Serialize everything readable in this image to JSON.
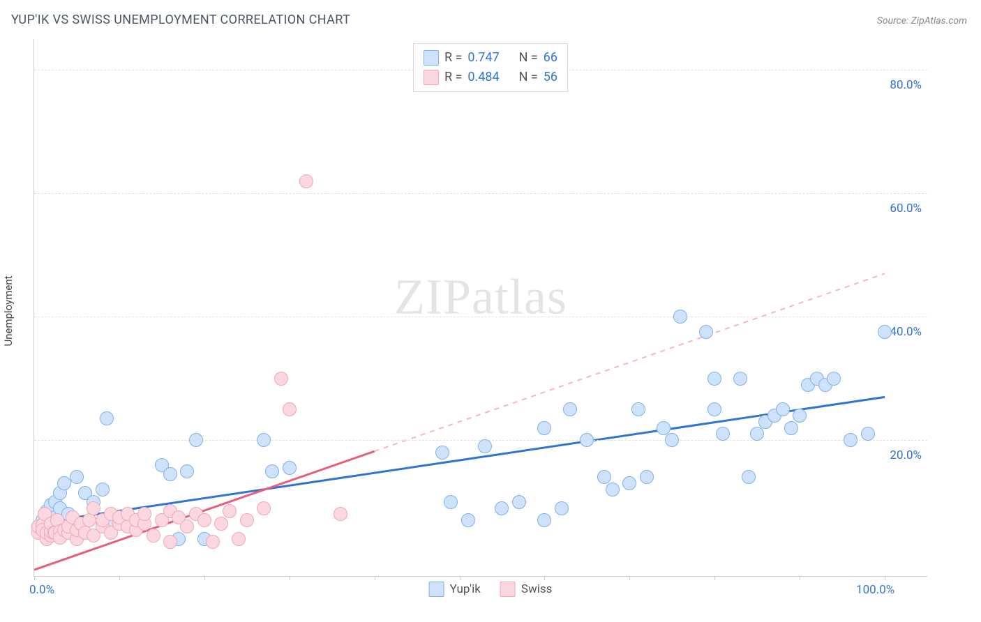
{
  "title": "YUP'IK VS SWISS UNEMPLOYMENT CORRELATION CHART",
  "source_label": "Source: ZipAtlas.com",
  "y_axis_label": "Unemployment",
  "watermark_zip": "ZIP",
  "watermark_rest": "atlas",
  "chart": {
    "type": "scatter",
    "xlim": [
      0,
      105
    ],
    "ylim": [
      -2,
      85
    ],
    "x_ticks": [
      0,
      10,
      20,
      30,
      40,
      50,
      60,
      70,
      80,
      90,
      100
    ],
    "x_tick_labels": {
      "0": "0.0%",
      "100": "100.0%"
    },
    "y_ticks": [
      20,
      40,
      60,
      80
    ],
    "y_tick_labels": {
      "20": "20.0%",
      "40": "40.0%",
      "60": "60.0%",
      "80": "80.0%"
    },
    "grid_color": "#e2e2e2",
    "background_color": "#ffffff",
    "marker_radius": 9,
    "marker_border_width": 1.5,
    "series": [
      {
        "key": "yupik",
        "label": "Yup'ik",
        "fill": "#cfe2fb",
        "stroke": "#7fb1ea",
        "trend_color": "#2f74d0",
        "trend_width": 3,
        "trend_dash_color": "#2f74d0",
        "stats": {
          "R_label": "R =",
          "R": "0.747",
          "N_label": "N =",
          "N": "66"
        },
        "trend": {
          "x1": 0,
          "y1": 6.5,
          "x2": 100,
          "y2": 27
        },
        "points": [
          [
            0.5,
            6
          ],
          [
            1,
            5
          ],
          [
            1,
            7
          ],
          [
            1.5,
            8.5
          ],
          [
            1.5,
            5.5
          ],
          [
            2,
            8
          ],
          [
            2,
            9.5
          ],
          [
            2.5,
            6.5
          ],
          [
            2.5,
            10
          ],
          [
            3,
            9
          ],
          [
            3,
            11.5
          ],
          [
            3.5,
            13
          ],
          [
            4,
            8
          ],
          [
            5,
            14
          ],
          [
            6,
            11.5
          ],
          [
            7,
            10
          ],
          [
            8,
            12
          ],
          [
            8.5,
            23.5
          ],
          [
            9,
            6
          ],
          [
            15,
            16
          ],
          [
            16,
            14.5
          ],
          [
            17,
            4
          ],
          [
            18,
            15
          ],
          [
            19,
            20
          ],
          [
            20,
            4
          ],
          [
            27,
            20
          ],
          [
            28,
            15
          ],
          [
            30,
            15.5
          ],
          [
            48,
            18
          ],
          [
            49,
            10
          ],
          [
            51,
            7
          ],
          [
            53,
            19
          ],
          [
            55,
            9
          ],
          [
            57,
            10
          ],
          [
            60,
            7
          ],
          [
            60,
            22
          ],
          [
            62,
            9
          ],
          [
            63,
            25
          ],
          [
            65,
            20
          ],
          [
            67,
            14
          ],
          [
            68,
            12
          ],
          [
            70,
            13
          ],
          [
            71,
            25
          ],
          [
            72,
            14
          ],
          [
            74,
            22
          ],
          [
            75,
            20
          ],
          [
            76,
            40
          ],
          [
            79,
            37.5
          ],
          [
            80,
            25
          ],
          [
            80,
            30
          ],
          [
            81,
            21
          ],
          [
            83,
            30
          ],
          [
            84,
            14
          ],
          [
            85,
            21
          ],
          [
            86,
            23
          ],
          [
            87,
            24
          ],
          [
            88,
            25
          ],
          [
            89,
            22
          ],
          [
            90,
            24
          ],
          [
            91,
            29
          ],
          [
            92,
            30
          ],
          [
            93,
            29
          ],
          [
            94,
            30
          ],
          [
            96,
            20
          ],
          [
            98,
            21
          ],
          [
            100,
            37.5
          ]
        ]
      },
      {
        "key": "swiss",
        "label": "Swiss",
        "fill": "#fbd7df",
        "stroke": "#f3a6b8",
        "trend_color": "#e85d7c",
        "trend_width": 3,
        "trend_dash_color": "#f6b5c3",
        "stats": {
          "R_label": "R =",
          "R": "0.484",
          "N_label": "N =",
          "N": "56"
        },
        "trend": {
          "x1": 0,
          "y1": -1,
          "x2": 100,
          "y2": 47
        },
        "trend_solid_xmax": 40,
        "points": [
          [
            0.5,
            5
          ],
          [
            0.5,
            6
          ],
          [
            1,
            6.2
          ],
          [
            1,
            5.5
          ],
          [
            1.2,
            8
          ],
          [
            1.5,
            4
          ],
          [
            1.5,
            5
          ],
          [
            2,
            4.5
          ],
          [
            2,
            5.2
          ],
          [
            2,
            6.5
          ],
          [
            2.3,
            5
          ],
          [
            2.5,
            5
          ],
          [
            2.7,
            7
          ],
          [
            3,
            5.2
          ],
          [
            3,
            4.2
          ],
          [
            3.5,
            5.5
          ],
          [
            4,
            5
          ],
          [
            4,
            6
          ],
          [
            4.5,
            7.5
          ],
          [
            5,
            4
          ],
          [
            5,
            5.5
          ],
          [
            5.5,
            6.5
          ],
          [
            6,
            5
          ],
          [
            6.5,
            7
          ],
          [
            7,
            4.5
          ],
          [
            7,
            9
          ],
          [
            8,
            6
          ],
          [
            8,
            7
          ],
          [
            9,
            5
          ],
          [
            9,
            8
          ],
          [
            10,
            6.5
          ],
          [
            10,
            7.5
          ],
          [
            11,
            6
          ],
          [
            11,
            8
          ],
          [
            12,
            5.5
          ],
          [
            12,
            7
          ],
          [
            13,
            6.5
          ],
          [
            13,
            8
          ],
          [
            14,
            4.5
          ],
          [
            15,
            7
          ],
          [
            16,
            8.5
          ],
          [
            16,
            3.5
          ],
          [
            17,
            7.5
          ],
          [
            18,
            6
          ],
          [
            19,
            8
          ],
          [
            20,
            7
          ],
          [
            21,
            3.5
          ],
          [
            22,
            6.5
          ],
          [
            23,
            8.5
          ],
          [
            24,
            4
          ],
          [
            25,
            7
          ],
          [
            27,
            9
          ],
          [
            29,
            30
          ],
          [
            30,
            25
          ],
          [
            32,
            62
          ],
          [
            36,
            8
          ]
        ]
      }
    ]
  },
  "bottom_legend": [
    {
      "label": "Yup'ik",
      "fill": "#cfe2fb",
      "stroke": "#7fb1ea"
    },
    {
      "label": "Swiss",
      "fill": "#fbd7df",
      "stroke": "#f3a6b8"
    }
  ]
}
